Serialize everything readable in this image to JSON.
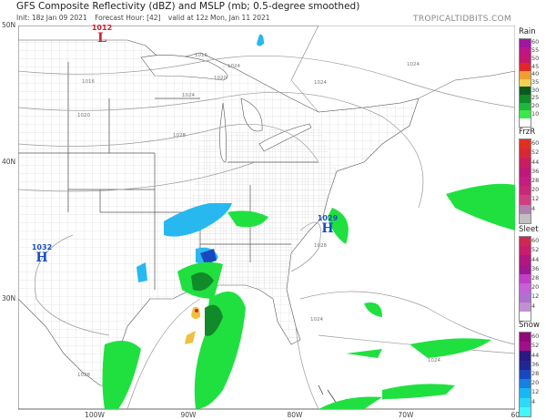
{
  "header": {
    "title": "GFS Composite Reflectivity (dBZ) and MSLP (mb; 0.5-degree smoothed)",
    "init": "Init: 18z Jan 09 2021",
    "forecast_hour": "Forecast Hour: [42]",
    "valid": "valid at 12z Mon, Jan 11 2021",
    "brand": "TROPICALTIDBITS.COM"
  },
  "axes": {
    "lat_labels": [
      "50N",
      "40N",
      "30N"
    ],
    "lon_labels": [
      "100W",
      "90W",
      "80W",
      "70W",
      "60W"
    ]
  },
  "pressure_centers": [
    {
      "type": "L",
      "value": "1012",
      "color": "#d0203a"
    },
    {
      "type": "H",
      "value": "1032",
      "color": "#1a4fc0"
    },
    {
      "type": "H",
      "value": "1029",
      "color": "#1a4fc0"
    }
  ],
  "isobar_labels": [
    "1016",
    "1020",
    "1024",
    "1028",
    "1016",
    "1020",
    "1024",
    "1024",
    "1024",
    "1028",
    "1028",
    "1024",
    "1024"
  ],
  "legend": [
    {
      "title": "Rain",
      "labels": [
        "60",
        "55",
        "50",
        "45",
        "40",
        "35",
        "30",
        "25",
        "20",
        "10"
      ],
      "colors": [
        "#a0169e",
        "#c0148c",
        "#c41870",
        "#e0282c",
        "#f0a030",
        "#f5d050",
        "#0a5a1e",
        "#118a2a",
        "#1fb83a",
        "#3ae84a",
        "#ffffff"
      ]
    },
    {
      "title": "FrzR",
      "labels": [
        "60",
        "52",
        "44",
        "36",
        "28",
        "20",
        "12",
        "4"
      ],
      "colors": [
        "#e03020",
        "#d82838",
        "#c81e60",
        "#c01878",
        "#c41c80",
        "#c82878",
        "#d04080",
        "#b080b0",
        "#c0c0c0"
      ]
    },
    {
      "title": "Sleet",
      "labels": [
        "60",
        "52",
        "44",
        "36",
        "28",
        "20",
        "12",
        "4"
      ],
      "colors": [
        "#d02850",
        "#c81c70",
        "#b01880",
        "#a01890",
        "#c040c8",
        "#c860d8",
        "#b070d0",
        "#c090d0",
        "#ffffff"
      ]
    },
    {
      "title": "Snow",
      "labels": [
        "60",
        "52",
        "44",
        "36",
        "28",
        "20",
        "12",
        "4"
      ],
      "colors": [
        "#900a7a",
        "#a0108a",
        "#2a1a80",
        "#202890",
        "#1848c0",
        "#1880e0",
        "#18b8f0",
        "#30d8f8",
        "#40f8f8"
      ]
    }
  ]
}
